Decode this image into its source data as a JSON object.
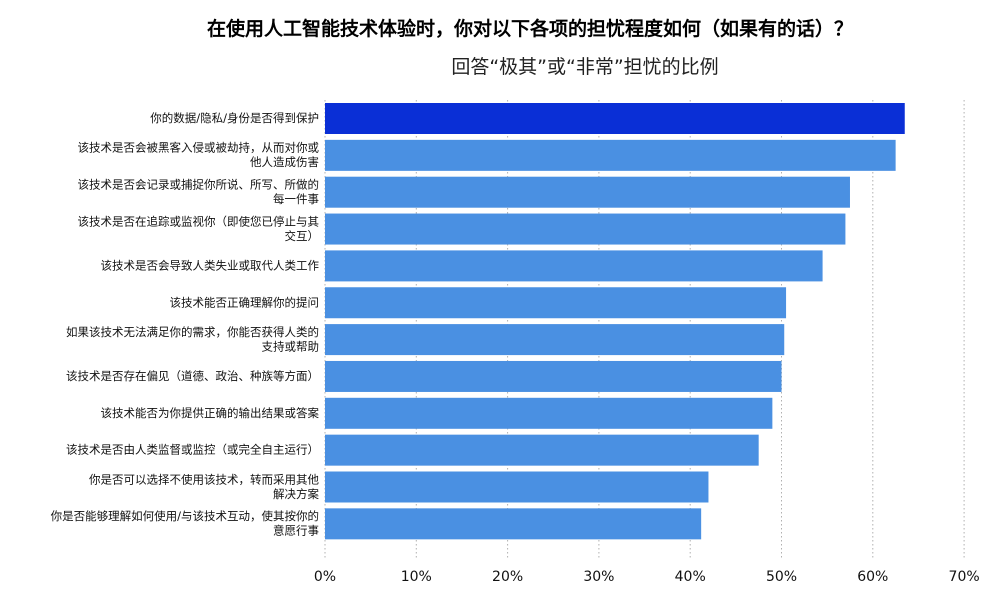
{
  "title": "在使用人工智能技术体验时，你对以下各项的担忧程度如何（如果有的话）？",
  "subtitle": "回答“极其”或“非常”担忧的比例",
  "colors": {
    "bar": "#4a90e2",
    "highlight_bar": "#0a2fd6",
    "highlight_label": "#1a3fd0",
    "grid": "#b0b0b0"
  },
  "chart_data": {
    "type": "bar",
    "orientation": "horizontal",
    "categories": [
      "你的数据/隐私/身份是否得到保护",
      "该技术是否会被黑客入侵或被劫持，从而对你或他人造成伤害",
      "该技术是否会记录或捕捉你所说、所写、所做的每一件事",
      "该技术是否在追踪或监视你（即使您已停止与其交互）",
      "该技术是否会导致人类失业或取代人类工作",
      "该技术能否正确理解你的提问",
      "如果该技术无法满足你的需求，你能否获得人类的支持或帮助",
      "该技术是否存在偏见（道德、政治、种族等方面）",
      "该技术能否为你提供正确的输出结果或答案",
      "该技术是否由人类监督或监控（或完全自主运行）",
      "你是否可以选择不使用该技术，转而采用其他解决方案",
      "你是否能够理解如何使用/与该技术互动，使其按你的意愿行事"
    ],
    "category_lines": [
      [
        "你的数据/隐私/身份是否得到保护"
      ],
      [
        "该技术是否会被黑客入侵或被劫持，从而对你或",
        "他人造成伤害"
      ],
      [
        "该技术是否会记录或捕捉你所说、所写、所做的",
        "每一件事"
      ],
      [
        "该技术是否在追踪或监视你（即使您已停止与其",
        "交互）"
      ],
      [
        "该技术是否会导致人类失业或取代人类工作"
      ],
      [
        "该技术能否正确理解你的提问"
      ],
      [
        "如果该技术无法满足你的需求，你能否获得人类的",
        "支持或帮助"
      ],
      [
        "该技术是否存在偏见（道德、政治、种族等方面）"
      ],
      [
        "该技术能否为你提供正确的输出结果或答案"
      ],
      [
        "该技术是否由人类监督或监控（或完全自主运行）"
      ],
      [
        "你是否可以选择不使用该技术，转而采用其他",
        "解决方案"
      ],
      [
        "你是否能够理解如何使用/与该技术互动，使其按你的",
        "意愿行事"
      ]
    ],
    "values": [
      63.5,
      62.5,
      57.5,
      57,
      54.5,
      50.5,
      50.3,
      50,
      49,
      47.5,
      42,
      41.2
    ],
    "highlight_index": 0,
    "xlim": [
      0,
      70
    ],
    "xticks": [
      0,
      10,
      20,
      30,
      40,
      50,
      60,
      70
    ],
    "tick_labels": [
      "0%",
      "10%",
      "20%",
      "30%",
      "40%",
      "50%",
      "60%",
      "70%"
    ],
    "grid": "vertical-dotted"
  }
}
